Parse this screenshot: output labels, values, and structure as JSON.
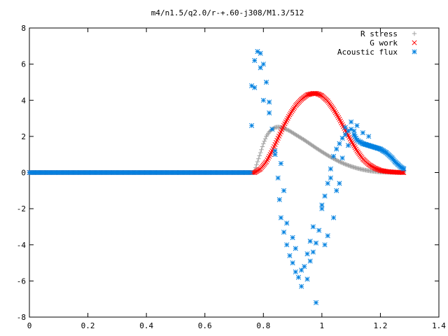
{
  "chart_data": {
    "type": "scatter",
    "title": "m4/n1.5/q2.0/r-+.60-j308/M1.3/512",
    "xlabel": "",
    "ylabel": "",
    "xlim": [
      0,
      1.4
    ],
    "ylim": [
      -8,
      8
    ],
    "xticks": [
      "0",
      "0.2",
      "0.4",
      "0.6",
      "0.8",
      "1",
      "1.2",
      "1.4"
    ],
    "yticks": [
      "-8",
      "-6",
      "-4",
      "-2",
      "0",
      "2",
      "4",
      "6",
      "8"
    ],
    "grid": false,
    "legend_position": "top-right",
    "series": [
      {
        "name": "R stress",
        "marker": "plus",
        "color": "#a0a0a0",
        "x": [
          0.77,
          0.78,
          0.79,
          0.8,
          0.81,
          0.82,
          0.83,
          0.84,
          0.85,
          0.86,
          0.87,
          0.88,
          0.89,
          0.9,
          0.92,
          0.94,
          0.96,
          0.98,
          1.0,
          1.02,
          1.04,
          1.06,
          1.08,
          1.1,
          1.12,
          1.14,
          1.16,
          1.18,
          1.2,
          1.22,
          1.24,
          1.26,
          1.28
        ],
        "y": [
          0.1,
          0.6,
          1.1,
          1.6,
          2.0,
          2.25,
          2.4,
          2.5,
          2.52,
          2.5,
          2.45,
          2.38,
          2.3,
          2.2,
          2.0,
          1.8,
          1.58,
          1.36,
          1.15,
          0.95,
          0.77,
          0.6,
          0.46,
          0.34,
          0.24,
          0.16,
          0.1,
          0.06,
          0.03,
          0.02,
          0.01,
          0.0,
          0.0
        ]
      },
      {
        "name": "G work",
        "marker": "cross",
        "color": "#ff0000",
        "x": [
          0.77,
          0.79,
          0.81,
          0.83,
          0.85,
          0.87,
          0.89,
          0.91,
          0.93,
          0.95,
          0.97,
          0.98,
          0.99,
          1.0,
          1.02,
          1.04,
          1.06,
          1.08,
          1.1,
          1.12,
          1.14,
          1.16,
          1.18,
          1.2,
          1.22,
          1.24,
          1.26,
          1.28
        ],
        "y": [
          0.0,
          0.2,
          0.6,
          1.2,
          1.9,
          2.6,
          3.2,
          3.7,
          4.05,
          4.3,
          4.38,
          4.38,
          4.33,
          4.25,
          3.95,
          3.5,
          2.95,
          2.35,
          1.75,
          1.2,
          0.75,
          0.45,
          0.25,
          0.12,
          0.06,
          0.03,
          0.01,
          0.0
        ]
      },
      {
        "name": "Acoustic flux",
        "marker": "star",
        "color": "#0080e0",
        "x": [
          0.76,
          0.76,
          0.77,
          0.78,
          0.79,
          0.8,
          0.81,
          0.82,
          0.83,
          0.84,
          0.85,
          0.855,
          0.86,
          0.87,
          0.88,
          0.89,
          0.9,
          0.91,
          0.92,
          0.93,
          0.94,
          0.95,
          0.96,
          0.97,
          0.98,
          0.99,
          1.0,
          1.01,
          1.02,
          1.03,
          1.04,
          1.05,
          1.06,
          1.07,
          1.08,
          1.09,
          1.1,
          1.11,
          1.12,
          1.13,
          1.14,
          1.15,
          1.16,
          1.17,
          1.18,
          1.19,
          1.2,
          1.21,
          1.22,
          1.23,
          1.24,
          1.25,
          1.26,
          1.27,
          1.28
        ],
        "y": [
          2.6,
          4.8,
          6.2,
          6.7,
          6.6,
          6.0,
          5.0,
          3.9,
          2.4,
          1.0,
          -0.3,
          -1.5,
          -2.5,
          -3.3,
          -4.0,
          -4.6,
          -5.0,
          -5.5,
          -5.8,
          -6.3,
          -5.2,
          -4.5,
          -4.9,
          -4.4,
          -3.9,
          -3.2,
          -2.0,
          -1.3,
          -0.6,
          0.2,
          0.9,
          1.3,
          1.6,
          1.9,
          2.1,
          2.3,
          2.4,
          2.1,
          1.8,
          1.7,
          1.6,
          1.55,
          1.5,
          1.45,
          1.4,
          1.35,
          1.3,
          1.2,
          1.1,
          0.95,
          0.8,
          0.6,
          0.45,
          0.3,
          0.2
        ],
        "scatter_extra_x": [
          0.77,
          0.79,
          0.8,
          0.82,
          0.84,
          0.86,
          0.87,
          0.88,
          0.9,
          0.91,
          0.93,
          0.95,
          0.96,
          0.97,
          0.98,
          1.0,
          1.01,
          1.02,
          1.03,
          1.04,
          1.05,
          1.06,
          1.07,
          1.08,
          1.09,
          1.1,
          1.11,
          1.12,
          1.13,
          1.14,
          1.16
        ],
        "scatter_extra_y": [
          4.7,
          5.8,
          4.0,
          3.3,
          1.2,
          0.5,
          -1.0,
          -2.8,
          -3.6,
          -4.2,
          -5.4,
          -5.9,
          -3.8,
          -3.0,
          -7.2,
          -1.8,
          -4.0,
          -3.5,
          -0.3,
          -2.5,
          -1.0,
          -0.6,
          0.8,
          2.5,
          1.5,
          2.8,
          2.3,
          2.6,
          1.7,
          2.2,
          2.0
        ]
      }
    ]
  }
}
